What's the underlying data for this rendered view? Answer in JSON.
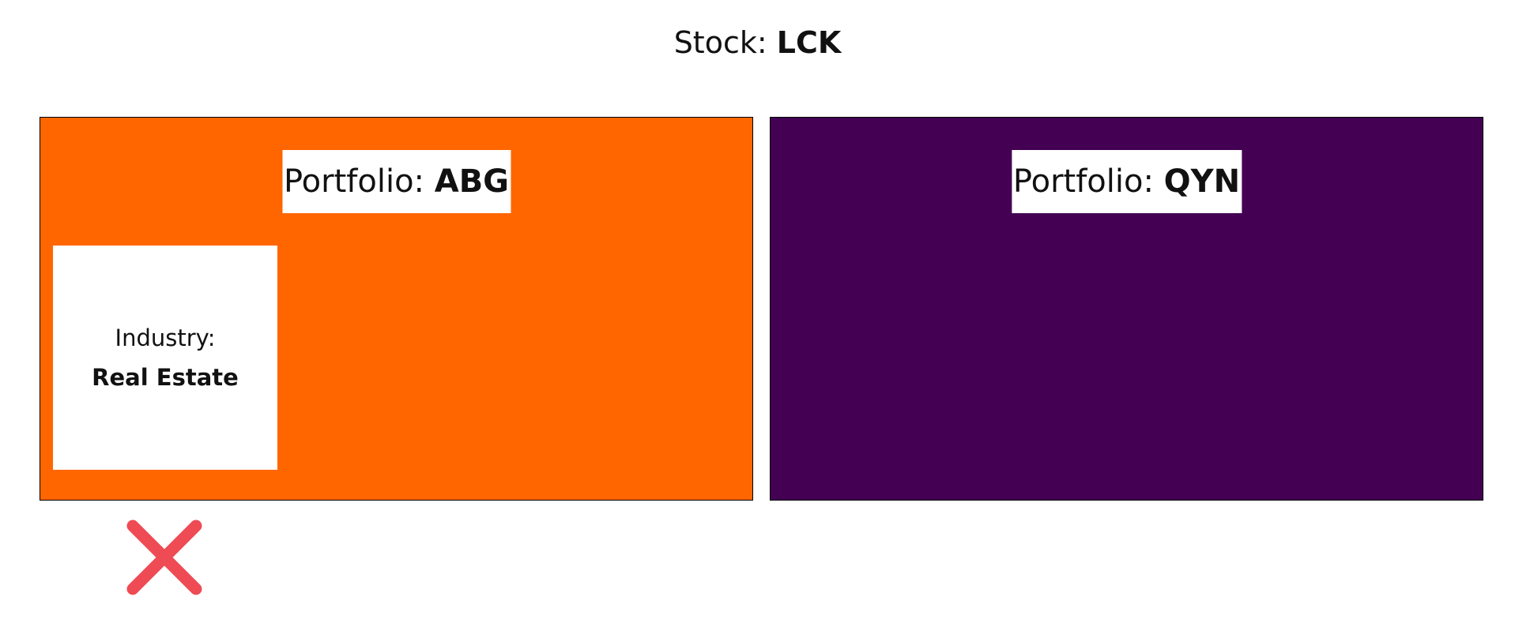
{
  "header": {
    "label": "Stock: ",
    "value": "LCK"
  },
  "portfolios": [
    {
      "label": "Portfolio: ",
      "value": "ABG",
      "color": "#FF6600",
      "industry": {
        "label": "Industry:",
        "value": "Real Estate"
      }
    },
    {
      "label": "Portfolio: ",
      "value": "QYN",
      "color": "#440154"
    }
  ],
  "feedback": {
    "icon": "close-icon",
    "color": "#EE4B55"
  }
}
